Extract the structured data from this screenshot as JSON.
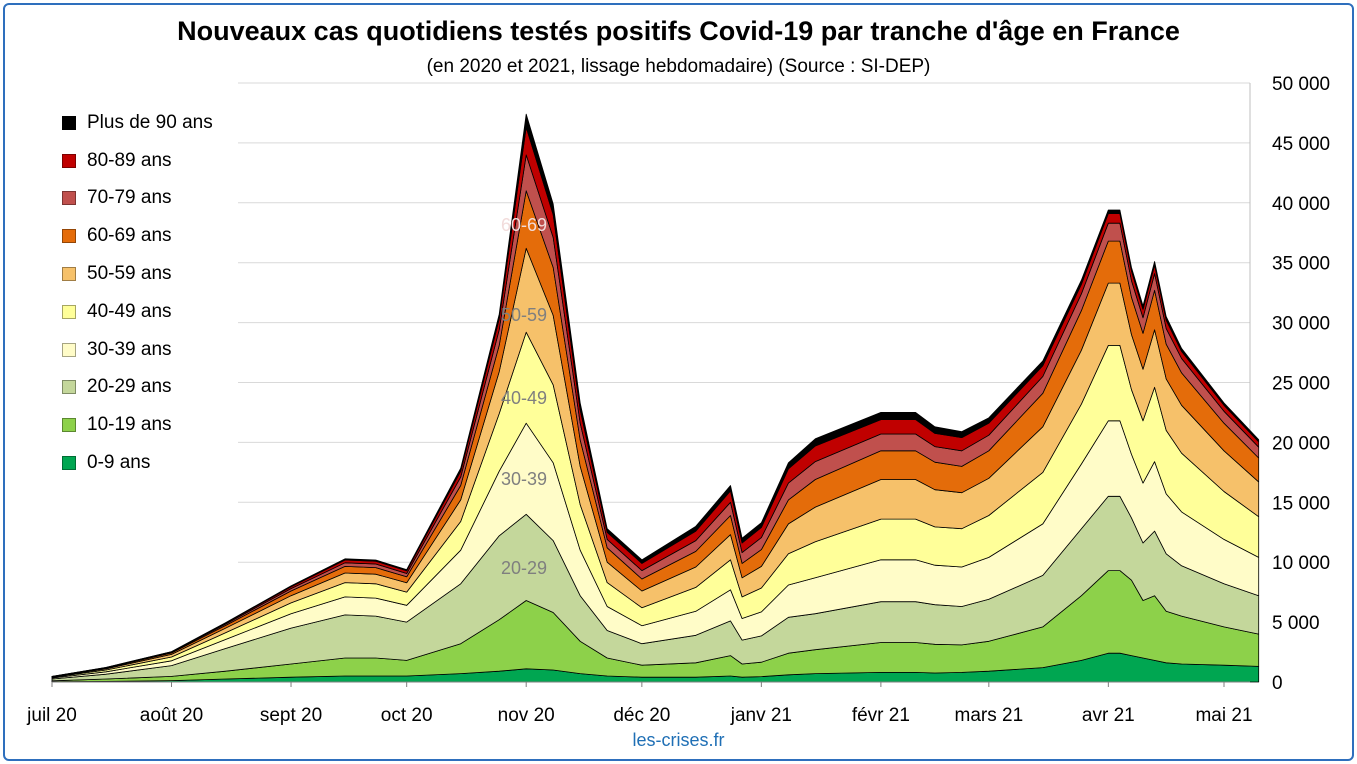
{
  "title": "Nouveaux cas quotidiens testés positifs Covid-19 par tranche d'âge en France",
  "subtitle": "(en 2020 et 2021, lissage hebdomadaire) (Source : SI-DEP)",
  "source": "les-crises.fr",
  "chart_data": {
    "type": "area",
    "stacked": true,
    "title": "Nouveaux cas quotidiens testés positifs Covid-19 par tranche d'âge en France",
    "subtitle": "(en 2020 et 2021, lissage hebdomadaire) (Source : SI-DEP)",
    "x_tick_labels": [
      "juil 20",
      "août 20",
      "sept 20",
      "oct 20",
      "nov 20",
      "déc 20",
      "janv 21",
      "févr 21",
      "mars 21",
      "avr 21",
      "mai 21"
    ],
    "y_tick_labels": [
      "0",
      "5 000",
      "10 000",
      "15 000",
      "20 000",
      "25 000",
      "30 000",
      "35 000",
      "40 000",
      "45 000",
      "50 000"
    ],
    "ylim": [
      0,
      50000
    ],
    "y_axis_side": "right",
    "grid": "horizontal",
    "legend_position": "left",
    "x": [
      "2020-07-01",
      "2020-07-15",
      "2020-08-01",
      "2020-08-15",
      "2020-09-01",
      "2020-09-15",
      "2020-09-23",
      "2020-10-01",
      "2020-10-15",
      "2020-10-25",
      "2020-11-01",
      "2020-11-08",
      "2020-11-15",
      "2020-11-22",
      "2020-12-01",
      "2020-12-15",
      "2020-12-24",
      "2020-12-27",
      "2021-01-01",
      "2021-01-08",
      "2021-01-15",
      "2021-02-01",
      "2021-02-10",
      "2021-02-15",
      "2021-02-22",
      "2021-03-01",
      "2021-03-15",
      "2021-03-25",
      "2021-04-01",
      "2021-04-04",
      "2021-04-07",
      "2021-04-10",
      "2021-04-13",
      "2021-04-16",
      "2021-04-20",
      "2021-05-01",
      "2021-05-10"
    ],
    "series": [
      {
        "name": "0-9 ans",
        "color": "#00a651",
        "values": [
          30,
          50,
          120,
          250,
          400,
          500,
          500,
          500,
          700,
          900,
          1100,
          1000,
          700,
          500,
          400,
          400,
          500,
          400,
          450,
          600,
          700,
          800,
          800,
          750,
          800,
          900,
          1200,
          1800,
          2400,
          2400,
          2200,
          2000,
          1800,
          1600,
          1500,
          1400,
          1300
        ]
      },
      {
        "name": "10-19 ans",
        "color": "#8dd14a",
        "values": [
          70,
          200,
          350,
          650,
          1100,
          1500,
          1500,
          1300,
          2500,
          4300,
          5700,
          4800,
          2700,
          1500,
          1000,
          1200,
          1700,
          1100,
          1200,
          1800,
          2000,
          2500,
          2500,
          2400,
          2300,
          2500,
          3400,
          5400,
          6900,
          6900,
          6300,
          4800,
          5400,
          4300,
          4000,
          3200,
          2700
        ]
      },
      {
        "name": "20-29 ans",
        "color": "#c4d79b",
        "values": [
          150,
          400,
          900,
          1900,
          3000,
          3600,
          3500,
          3200,
          5000,
          7000,
          7200,
          6000,
          3800,
          2300,
          1800,
          2300,
          2900,
          2000,
          2200,
          3000,
          3000,
          3400,
          3400,
          3300,
          3200,
          3500,
          4300,
          5600,
          6200,
          6200,
          5200,
          4800,
          5400,
          4800,
          4200,
          3600,
          3200
        ]
      },
      {
        "name": "30-39 ans",
        "color": "#fffcc8",
        "values": [
          80,
          200,
          400,
          750,
          1200,
          1500,
          1500,
          1400,
          2800,
          5400,
          7600,
          6500,
          3800,
          2000,
          1500,
          2000,
          2600,
          1800,
          2000,
          2700,
          3000,
          3500,
          3500,
          3300,
          3300,
          3500,
          4300,
          5400,
          6300,
          6300,
          5300,
          5000,
          5800,
          5000,
          4500,
          3700,
          3200
        ]
      },
      {
        "name": "40-49 ans",
        "color": "#ffff99",
        "values": [
          60,
          150,
          320,
          560,
          900,
          1200,
          1200,
          1100,
          2400,
          4800,
          7600,
          6500,
          3800,
          2000,
          1500,
          2000,
          2500,
          1800,
          2000,
          2600,
          3000,
          3400,
          3400,
          3200,
          3200,
          3500,
          4300,
          5000,
          6300,
          6300,
          5400,
          5200,
          6200,
          5300,
          4900,
          4000,
          3400
        ]
      },
      {
        "name": "50-59 ans",
        "color": "#f6c16a",
        "values": [
          40,
          100,
          210,
          380,
          600,
          800,
          800,
          780,
          1800,
          3500,
          7000,
          5800,
          3200,
          1700,
          1400,
          1700,
          2100,
          1600,
          1800,
          2500,
          2900,
          3300,
          3300,
          3100,
          3000,
          3100,
          3800,
          4500,
          5200,
          5200,
          4600,
          4300,
          4800,
          4300,
          4000,
          3400,
          2900
        ]
      },
      {
        "name": "60-69 ans",
        "color": "#e46c0a",
        "values": [
          20,
          60,
          120,
          230,
          400,
          550,
          550,
          500,
          1200,
          2200,
          4800,
          4000,
          2200,
          1200,
          1000,
          1300,
          1600,
          1200,
          1400,
          2000,
          2300,
          2400,
          2400,
          2300,
          2200,
          2300,
          2800,
          3300,
          3500,
          3500,
          3100,
          3000,
          3300,
          2900,
          2700,
          2300,
          2000
        ]
      },
      {
        "name": "70-79 ans",
        "color": "#c0504d",
        "values": [
          10,
          30,
          60,
          110,
          200,
          300,
          300,
          280,
          700,
          1300,
          3000,
          2500,
          1400,
          700,
          700,
          900,
          1100,
          900,
          1000,
          1400,
          1500,
          1400,
          1400,
          1300,
          1300,
          1300,
          1400,
          1400,
          1500,
          1500,
          1400,
          1300,
          1400,
          1300,
          1200,
          1000,
          900
        ]
      },
      {
        "name": "80-89 ans",
        "color": "#c00000",
        "values": [
          8,
          20,
          40,
          80,
          150,
          230,
          230,
          220,
          500,
          900,
          2300,
          1900,
          1100,
          600,
          600,
          800,
          950,
          800,
          850,
          1200,
          1300,
          1200,
          1200,
          1100,
          1100,
          1000,
          900,
          800,
          800,
          800,
          800,
          700,
          700,
          700,
          600,
          500,
          450
        ]
      },
      {
        "name": "Plus de 90 ans",
        "color": "#000000",
        "values": [
          3,
          10,
          20,
          40,
          70,
          100,
          100,
          100,
          250,
          400,
          1100,
          900,
          600,
          300,
          300,
          400,
          450,
          400,
          400,
          500,
          600,
          600,
          600,
          550,
          500,
          450,
          400,
          350,
          300,
          300,
          300,
          300,
          300,
          300,
          250,
          200,
          180
        ]
      }
    ],
    "annotations": [
      "60-69",
      "50-59",
      "40-49",
      "30-39",
      "20-29"
    ]
  }
}
